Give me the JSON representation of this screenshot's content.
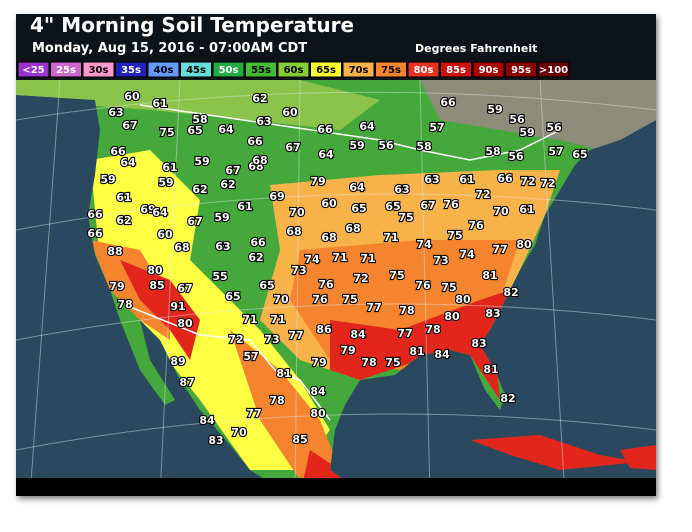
{
  "header": {
    "title": "4\" Morning Soil Temperature",
    "subtitle": "Monday, Aug 15, 2016 - 07:00AM CDT",
    "units": "Degrees Fahrenheit"
  },
  "legend": [
    {
      "label": "<25",
      "color": "#9933cc"
    },
    {
      "label": "25s",
      "color": "#cc66cc"
    },
    {
      "label": "30s",
      "color": "#ff99cc"
    },
    {
      "label": "35s",
      "color": "#2222bb"
    },
    {
      "label": "40s",
      "color": "#6699ff"
    },
    {
      "label": "45s",
      "color": "#66dddd"
    },
    {
      "label": "50s",
      "color": "#22aa44"
    },
    {
      "label": "55s",
      "color": "#44bb33"
    },
    {
      "label": "60s",
      "color": "#88cc33"
    },
    {
      "label": "65s",
      "color": "#ffff33"
    },
    {
      "label": "70s",
      "color": "#f7b24a"
    },
    {
      "label": "75s",
      "color": "#f5842f"
    },
    {
      "label": "80s",
      "color": "#e8301e"
    },
    {
      "label": "85s",
      "color": "#cc1111"
    },
    {
      "label": "90s",
      "color": "#aa0000"
    },
    {
      "label": "95s",
      "color": "#880000"
    },
    {
      "label": ">100",
      "color": "#660000"
    }
  ],
  "stations": [
    60,
    61,
    62,
    60,
    66,
    59,
    56,
    63,
    67,
    75,
    58,
    65,
    64,
    63,
    66,
    64,
    57,
    59,
    56,
    66,
    64,
    61,
    59,
    67,
    68,
    66,
    67,
    64,
    59,
    56,
    58,
    58,
    56,
    57,
    65,
    59,
    59,
    62,
    62,
    68,
    79,
    64,
    63,
    63,
    61,
    66,
    72,
    72,
    61,
    69,
    64,
    69,
    70,
    60,
    65,
    65,
    75,
    67,
    76,
    72,
    70,
    61,
    66,
    62,
    60,
    67,
    59,
    61,
    66,
    63,
    66,
    62,
    68,
    68,
    68,
    71,
    74,
    75,
    76,
    77,
    80,
    88,
    68,
    73,
    74,
    71,
    71,
    72,
    75,
    73,
    74,
    81,
    80,
    55,
    79,
    85,
    67,
    65,
    76,
    76,
    75,
    82,
    78,
    91,
    65,
    70,
    76,
    75,
    77,
    80,
    83,
    80,
    71,
    71,
    78,
    72,
    73,
    77,
    86,
    84,
    77,
    78,
    80,
    83,
    57,
    79,
    79,
    78,
    75,
    81,
    84,
    89,
    81,
    81,
    87,
    84,
    78,
    82,
    80,
    77,
    84,
    70,
    83,
    85
  ]
}
